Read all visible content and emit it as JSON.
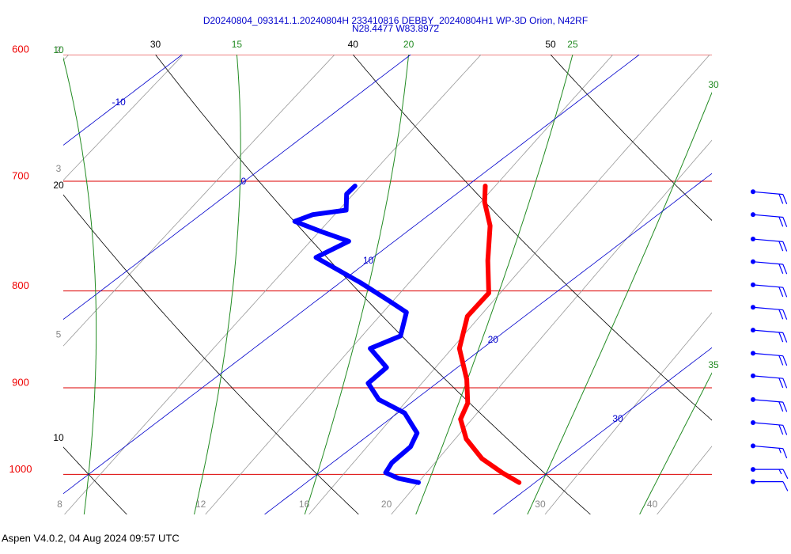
{
  "chart_data": {
    "type": "skewt",
    "title": "D20240804_093141.1.20240804H 233410816 DEBBY_20240804H1 WP-3D Orion, N42RF",
    "subtitle": "N28.4477 W83.8972",
    "ylim": [
      1050,
      600
    ],
    "yticks": [
      600,
      700,
      800,
      900,
      1000
    ],
    "log_y": true,
    "isotherms": [
      -10,
      0,
      10,
      20,
      30
    ],
    "dry_adiabats": [
      10,
      20,
      30,
      40,
      50
    ],
    "moist_adiabats": [
      10,
      15,
      20,
      25,
      30,
      35
    ],
    "mixing_ratios": [
      2,
      3,
      5,
      8,
      12,
      16,
      20,
      30,
      40
    ],
    "series": [
      {
        "color": "#ff0000",
        "pressure": [
          1010,
          998,
          981,
          958,
          935,
          917,
          891,
          858,
          825,
          802,
          771,
          739,
          718,
          704
        ],
        "values": [
          29.3,
          28.0,
          26.3,
          24.5,
          23.1,
          22.5,
          21.1,
          19.0,
          17.5,
          17.1,
          15.2,
          13.3,
          11.7,
          10.8
        ]
      },
      {
        "color": "#0000ff",
        "pressure": [
          1010,
          1005,
          998,
          986,
          967,
          951,
          928,
          913,
          895,
          878,
          858,
          845,
          821,
          809,
          792,
          768,
          753,
          744,
          735,
          729,
          725,
          711,
          704
        ],
        "values": [
          24.9,
          23.8,
          22.9,
          22.6,
          22.5,
          22.0,
          20.3,
          18.4,
          17.0,
          16.9,
          15.1,
          15.7,
          14.6,
          13.1,
          10.9,
          7.5,
          8.0,
          6.2,
          4.5,
          4.9,
          6.1,
          5.2,
          5.1
        ]
      }
    ],
    "winds": {
      "color": "#0000ff",
      "pressure": [
        709,
        729,
        751,
        772,
        794,
        816,
        839,
        863,
        887,
        913,
        939,
        966,
        994,
        1009
      ],
      "speed": [
        20,
        20,
        20,
        20,
        20,
        20,
        20,
        20,
        20,
        20,
        20,
        15,
        15,
        10
      ],
      "direction": [
        95,
        95,
        95,
        95,
        95,
        95,
        95,
        95,
        95,
        95,
        95,
        95,
        90,
        90
      ]
    }
  },
  "footer": "Aspen V4.0.2, 04 Aug 2024  09:57 UTC"
}
